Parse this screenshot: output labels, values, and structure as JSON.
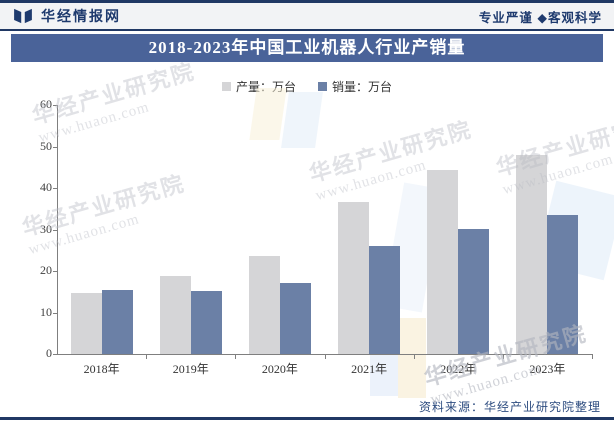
{
  "page": {
    "header": {
      "brand": "华经情报网",
      "slogan": "专业严谨 ◆客观科学"
    },
    "title": "2018-2023年中国工业机器人行业产销量",
    "source_note": "资料来源：华经产业研究院整理",
    "watermark": {
      "line1": "华经产业研究院",
      "line2": "www.huaon.com"
    },
    "colors": {
      "navy_line": "#203864",
      "banner_bg": "#4a6399",
      "production_bar": "#d5d5d7",
      "sales_bar": "#6b80a6",
      "axis": "#7f7f7f",
      "label_text": "#404040"
    }
  },
  "chart_data": {
    "type": "bar",
    "title": "2018-2023年中国工业机器人行业产销量",
    "categories": [
      "2018年",
      "2019年",
      "2020年",
      "2021年",
      "2022年",
      "2023年"
    ],
    "series": [
      {
        "name": "产量：万台",
        "color": "#d5d5d7",
        "values": [
          14.8,
          18.7,
          23.7,
          36.6,
          44.3,
          48.0
        ]
      },
      {
        "name": "销量：万台",
        "color": "#6b80a6",
        "values": [
          15.5,
          15.2,
          17.0,
          26.1,
          30.2,
          33.4
        ]
      }
    ],
    "xlabel": "",
    "ylabel": "",
    "ylim": [
      0,
      60
    ],
    "yticks": [
      0,
      10,
      20,
      30,
      40,
      50,
      60
    ],
    "grid": false,
    "legend_position": "top"
  }
}
